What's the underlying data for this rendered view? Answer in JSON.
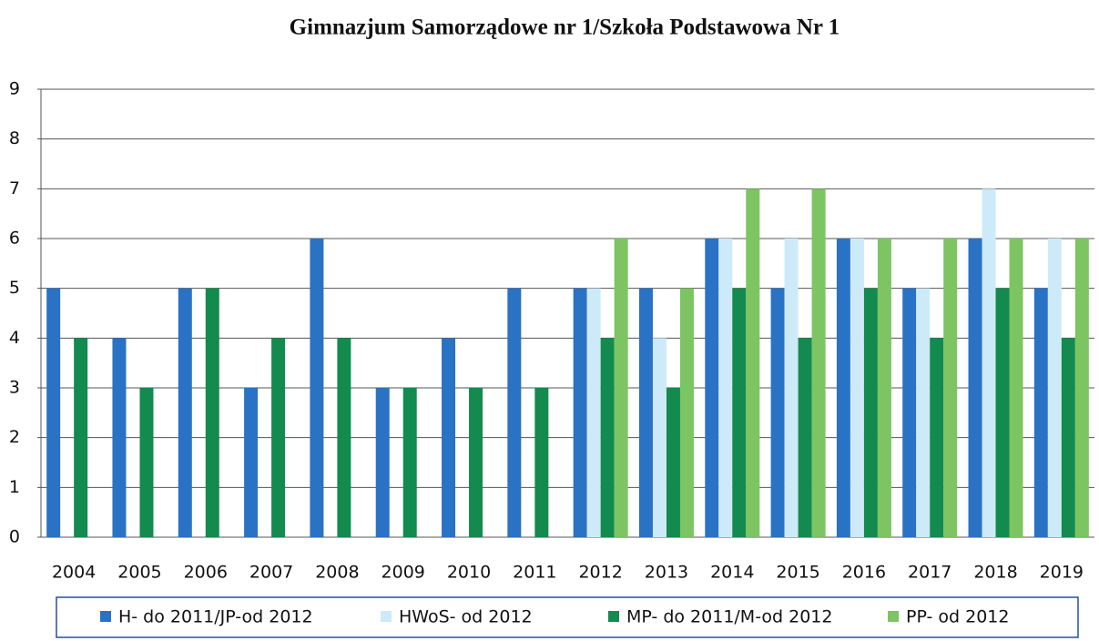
{
  "chart_data": {
    "type": "bar",
    "title": "Gimnazjum Samorządowe nr 1/Szkoła Podstawowa Nr 1",
    "categories": [
      "2004",
      "2005",
      "2006",
      "2007",
      "2008",
      "2009",
      "2010",
      "2011",
      "2012",
      "2013",
      "2014",
      "2015",
      "2016",
      "2017",
      "2018",
      "2019"
    ],
    "series": [
      {
        "name": "H- do 2011/JP-od 2012",
        "color": "#2a72c4",
        "values": [
          5,
          4,
          5,
          3,
          6,
          3,
          4,
          5,
          5,
          5,
          6,
          5,
          6,
          5,
          6,
          5
        ]
      },
      {
        "name": "HWoS- od 2012",
        "color": "#cdeaf8",
        "values": [
          null,
          null,
          null,
          null,
          null,
          null,
          null,
          null,
          5,
          4,
          6,
          6,
          6,
          5,
          7,
          6
        ]
      },
      {
        "name": "MP- do 2011/M-od 2012",
        "color": "#138a4e",
        "values": [
          4,
          3,
          5,
          4,
          4,
          3,
          3,
          3,
          4,
          3,
          5,
          4,
          5,
          4,
          5,
          4
        ]
      },
      {
        "name": "PP- od 2012",
        "color": "#7dc462",
        "values": [
          null,
          null,
          null,
          null,
          null,
          null,
          null,
          null,
          6,
          5,
          7,
          7,
          6,
          6,
          6,
          6
        ]
      }
    ],
    "ylim": [
      0,
      9
    ],
    "yticks": [
      0,
      1,
      2,
      3,
      4,
      5,
      6,
      7,
      8,
      9
    ],
    "grid": true,
    "legend": "bottom"
  }
}
